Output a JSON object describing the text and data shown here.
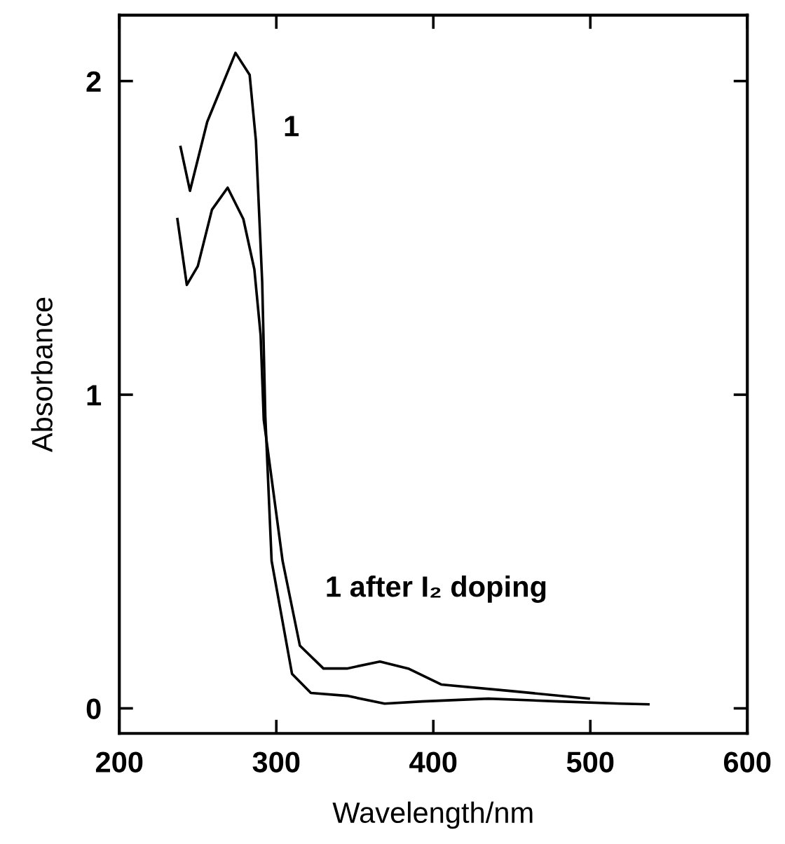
{
  "chart_data": {
    "type": "line",
    "xlabel": "Wavelength/nm",
    "ylabel": "Absorbance",
    "xlim": [
      200,
      600
    ],
    "xticks": [
      200,
      300,
      400,
      500,
      600
    ],
    "ylim": [
      -0.08,
      2.21
    ],
    "yticks": [
      0,
      1,
      2
    ],
    "grid": false,
    "legend": false,
    "marker": "none",
    "line_style": "solid",
    "series": [
      {
        "name": "1",
        "color": "#000000",
        "x": [
          239,
          245,
          256,
          274,
          283,
          287,
          291,
          293,
          297,
          310,
          322,
          345,
          369,
          393,
          435,
          480,
          519,
          537
        ],
        "values": [
          1.79,
          1.65,
          1.87,
          2.09,
          2.02,
          1.81,
          1.36,
          0.93,
          0.47,
          0.11,
          0.049,
          0.04,
          0.015,
          0.022,
          0.031,
          0.022,
          0.015,
          0.013
        ]
      },
      {
        "name": "1 after I₂ doping",
        "color": "#000000",
        "x": [
          237,
          243,
          250,
          259,
          269,
          279,
          286,
          290,
          292,
          304,
          315,
          330,
          345,
          366,
          384,
          405,
          450,
          499
        ],
        "values": [
          1.56,
          1.35,
          1.41,
          1.59,
          1.66,
          1.56,
          1.4,
          1.19,
          0.92,
          0.47,
          0.2,
          0.127,
          0.127,
          0.149,
          0.127,
          0.076,
          0.055,
          0.031
        ]
      }
    ]
  }
}
